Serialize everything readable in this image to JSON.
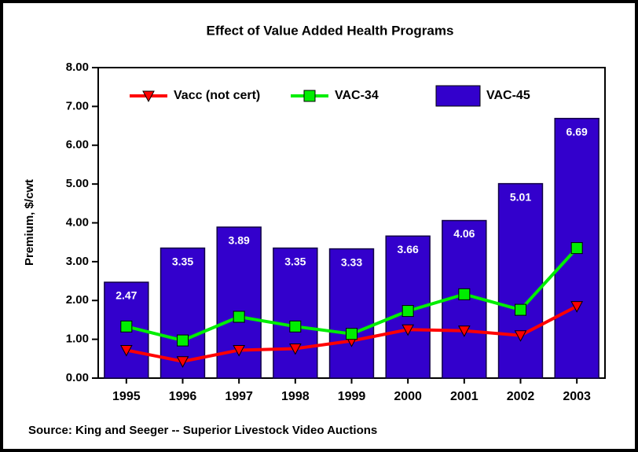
{
  "chart_data": {
    "type": "bar",
    "title": "Effect of Value Added Health Programs",
    "y_label": "Premium, $/cwt",
    "source": "Source: King and Seeger -- Superior Livestock Video Auctions",
    "categories": [
      "1995",
      "1996",
      "1997",
      "1998",
      "1999",
      "2000",
      "2001",
      "2002",
      "2003"
    ],
    "series": [
      {
        "name": "Vacc (not cert)",
        "type": "line",
        "marker": "triangle-down",
        "color": "#ff0000",
        "values": [
          0.72,
          0.43,
          0.72,
          0.76,
          0.96,
          1.25,
          1.22,
          1.1,
          1.85
        ]
      },
      {
        "name": "VAC-34",
        "type": "line",
        "marker": "square",
        "color": "#00ee00",
        "values": [
          1.33,
          0.97,
          1.58,
          1.33,
          1.14,
          1.73,
          2.16,
          1.76,
          3.35
        ]
      },
      {
        "name": "VAC-45",
        "type": "bar",
        "color": "#3300cc",
        "values": [
          2.47,
          3.35,
          3.89,
          3.35,
          3.33,
          3.66,
          4.06,
          5.01,
          6.69
        ]
      }
    ],
    "ylim": [
      0,
      8
    ],
    "yticks": [
      {
        "value": 0,
        "label": "0.00"
      },
      {
        "value": 1,
        "label": "1.00"
      },
      {
        "value": 2,
        "label": "2.00"
      },
      {
        "value": 3,
        "label": "3.00"
      },
      {
        "value": 4,
        "label": "4.00"
      },
      {
        "value": 5,
        "label": "5.00"
      },
      {
        "value": 6,
        "label": "6.00"
      },
      {
        "value": 7,
        "label": "7.00"
      },
      {
        "value": 8,
        "label": "8.00"
      }
    ],
    "legend": "top"
  }
}
